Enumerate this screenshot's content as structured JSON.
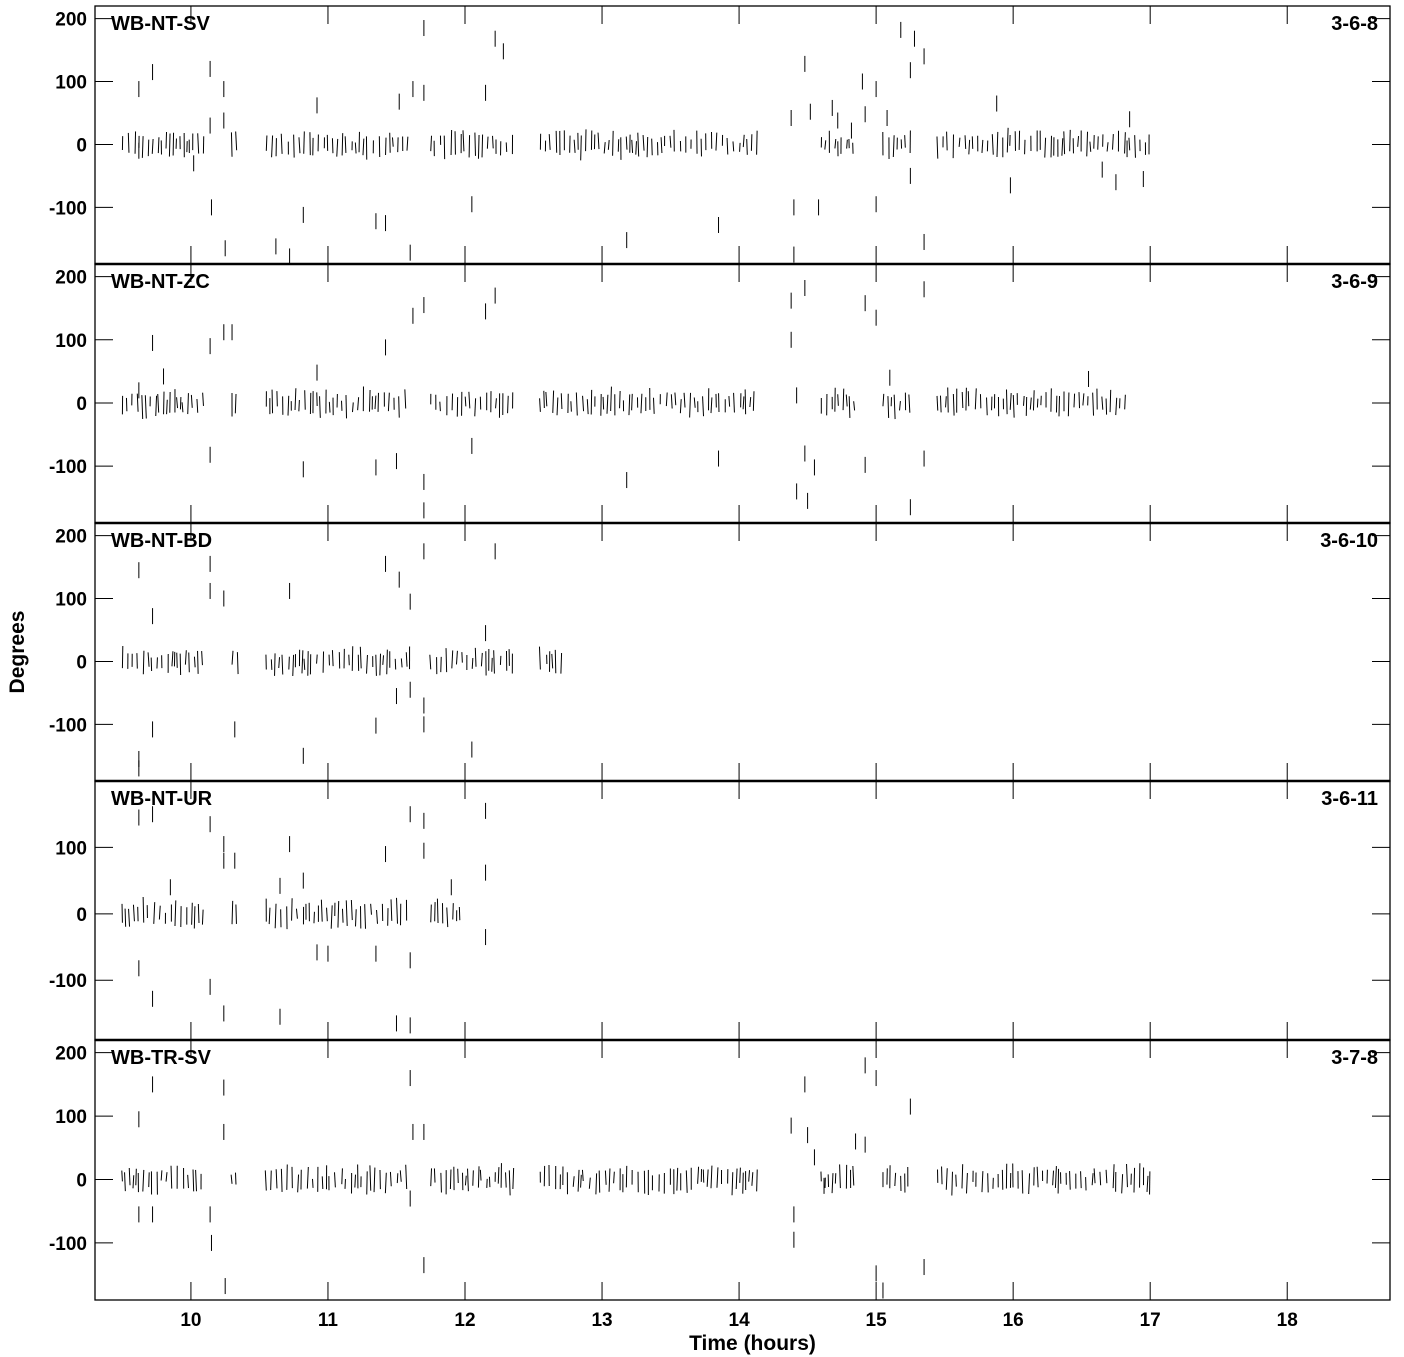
{
  "chart_data": {
    "type": "scatter",
    "xlabel": "Time (hours)",
    "ylabel": "Degrees",
    "xlim": [
      9.3,
      18.75
    ],
    "x_ticks": [
      "10",
      "11",
      "12",
      "13",
      "14",
      "15",
      "16",
      "17",
      "18"
    ],
    "panels": [
      {
        "baseline": "WB-NT-SV",
        "code": "3-6-8",
        "ylim": [
          -190,
          220
        ],
        "y_ticks": [
          "200",
          "100",
          "0",
          "-100"
        ],
        "bands": [
          [
            9.5,
            10.1
          ],
          [
            10.3,
            10.35
          ],
          [
            10.55,
            11.6
          ],
          [
            11.75,
            12.35
          ],
          [
            12.55,
            14.15
          ],
          [
            14.6,
            14.85
          ],
          [
            15.05,
            15.25
          ],
          [
            15.45,
            17.0
          ]
        ],
        "scatter": [
          [
            9.62,
            88
          ],
          [
            9.72,
            115
          ],
          [
            9.62,
            -10
          ],
          [
            10.02,
            -30
          ],
          [
            10.14,
            120
          ],
          [
            10.14,
            30
          ],
          [
            10.24,
            88
          ],
          [
            10.24,
            38
          ],
          [
            10.15,
            -100
          ],
          [
            10.25,
            -165
          ],
          [
            10.62,
            -162
          ],
          [
            10.72,
            -178
          ],
          [
            10.82,
            -112
          ],
          [
            10.92,
            62
          ],
          [
            11.35,
            -122
          ],
          [
            11.42,
            -125
          ],
          [
            11.52,
            68
          ],
          [
            11.6,
            -172
          ],
          [
            11.62,
            88
          ],
          [
            11.7,
            185
          ],
          [
            11.7,
            82
          ],
          [
            12.05,
            -95
          ],
          [
            12.15,
            82
          ],
          [
            12.22,
            168
          ],
          [
            12.28,
            148
          ],
          [
            13.18,
            -152
          ],
          [
            13.85,
            -128
          ],
          [
            14.38,
            42
          ],
          [
            14.4,
            -100
          ],
          [
            14.4,
            -175
          ],
          [
            14.48,
            128
          ],
          [
            14.52,
            52
          ],
          [
            14.58,
            -100
          ],
          [
            14.68,
            58
          ],
          [
            14.72,
            38
          ],
          [
            14.82,
            22
          ],
          [
            14.9,
            100
          ],
          [
            14.92,
            48
          ],
          [
            15.0,
            88
          ],
          [
            15.0,
            -95
          ],
          [
            15.08,
            42
          ],
          [
            15.18,
            182
          ],
          [
            15.25,
            118
          ],
          [
            15.28,
            168
          ],
          [
            15.35,
            140
          ],
          [
            15.25,
            -50
          ],
          [
            15.35,
            -155
          ],
          [
            15.88,
            65
          ],
          [
            16.65,
            -40
          ],
          [
            16.75,
            -60
          ],
          [
            16.85,
            40
          ],
          [
            16.95,
            -55
          ],
          [
            15.98,
            -65
          ]
        ]
      },
      {
        "baseline": "WB-NT-ZC",
        "code": "3-6-9",
        "ylim": [
          -190,
          220
        ],
        "y_ticks": [
          "200",
          "100",
          "0",
          "-100"
        ],
        "bands": [
          [
            9.5,
            10.1
          ],
          [
            10.3,
            10.35
          ],
          [
            10.55,
            11.6
          ],
          [
            11.75,
            12.35
          ],
          [
            12.55,
            14.15
          ],
          [
            14.6,
            14.85
          ],
          [
            15.05,
            15.25
          ],
          [
            15.45,
            16.85
          ]
        ],
        "scatter": [
          [
            9.62,
            20
          ],
          [
            9.72,
            95
          ],
          [
            9.8,
            42
          ],
          [
            10.14,
            90
          ],
          [
            10.14,
            -82
          ],
          [
            10.24,
            112
          ],
          [
            10.3,
            112
          ],
          [
            10.82,
            -105
          ],
          [
            10.92,
            48
          ],
          [
            11.42,
            88
          ],
          [
            11.35,
            -102
          ],
          [
            11.5,
            -92
          ],
          [
            11.62,
            138
          ],
          [
            11.7,
            155
          ],
          [
            11.7,
            -125
          ],
          [
            11.7,
            -170
          ],
          [
            12.05,
            -68
          ],
          [
            12.15,
            145
          ],
          [
            12.22,
            170
          ],
          [
            13.18,
            -122
          ],
          [
            13.85,
            -88
          ],
          [
            14.38,
            162
          ],
          [
            14.38,
            100
          ],
          [
            14.42,
            -140
          ],
          [
            14.48,
            182
          ],
          [
            14.48,
            -80
          ],
          [
            14.5,
            -155
          ],
          [
            14.55,
            -102
          ],
          [
            14.92,
            158
          ],
          [
            15.0,
            135
          ],
          [
            14.92,
            -98
          ],
          [
            15.1,
            40
          ],
          [
            15.25,
            -165
          ],
          [
            15.35,
            180
          ],
          [
            15.35,
            -88
          ],
          [
            14.42,
            12
          ],
          [
            16.55,
            38
          ]
        ]
      },
      {
        "baseline": "WB-NT-BD",
        "code": "3-6-10",
        "ylim": [
          -190,
          220
        ],
        "y_ticks": [
          "200",
          "100",
          "0",
          "-100"
        ],
        "bands": [
          [
            9.5,
            10.1
          ],
          [
            10.3,
            10.35
          ],
          [
            10.55,
            11.6
          ],
          [
            11.75,
            12.35
          ],
          [
            12.55,
            12.7
          ]
        ],
        "scatter": [
          [
            9.62,
            145
          ],
          [
            9.72,
            72
          ],
          [
            9.62,
            -155
          ],
          [
            9.62,
            -170
          ],
          [
            9.72,
            -108
          ],
          [
            10.14,
            155
          ],
          [
            10.14,
            112
          ],
          [
            10.24,
            100
          ],
          [
            10.32,
            -108
          ],
          [
            10.72,
            112
          ],
          [
            10.82,
            -150
          ],
          [
            11.42,
            155
          ],
          [
            11.35,
            -102
          ],
          [
            11.52,
            130
          ],
          [
            11.6,
            95
          ],
          [
            11.5,
            -55
          ],
          [
            11.6,
            -45
          ],
          [
            11.7,
            175
          ],
          [
            11.7,
            -70
          ],
          [
            11.7,
            -100
          ],
          [
            12.05,
            -140
          ],
          [
            12.15,
            45
          ],
          [
            12.22,
            175
          ]
        ]
      },
      {
        "baseline": "WB-NT-UR",
        "code": "3-6-11",
        "ylim": [
          -190,
          200
        ],
        "y_ticks": [
          "100",
          "0",
          "-100"
        ],
        "bands": [
          [
            9.5,
            10.1
          ],
          [
            10.3,
            10.35
          ],
          [
            10.55,
            11.6
          ],
          [
            11.75,
            11.98
          ]
        ],
        "scatter": [
          [
            9.62,
            145
          ],
          [
            9.72,
            150
          ],
          [
            9.62,
            -82
          ],
          [
            9.72,
            -128
          ],
          [
            9.85,
            40
          ],
          [
            10.14,
            135
          ],
          [
            10.14,
            -110
          ],
          [
            10.24,
            105
          ],
          [
            10.24,
            80
          ],
          [
            10.24,
            -150
          ],
          [
            10.32,
            80
          ],
          [
            10.65,
            42
          ],
          [
            10.72,
            105
          ],
          [
            10.82,
            50
          ],
          [
            10.65,
            -155
          ],
          [
            10.92,
            -58
          ],
          [
            11.0,
            -60
          ],
          [
            11.35,
            -60
          ],
          [
            11.42,
            90
          ],
          [
            11.5,
            -165
          ],
          [
            11.6,
            150
          ],
          [
            11.6,
            -70
          ],
          [
            11.6,
            -168
          ],
          [
            11.7,
            140
          ],
          [
            11.7,
            95
          ],
          [
            11.9,
            40
          ],
          [
            12.15,
            155
          ],
          [
            12.15,
            62
          ],
          [
            12.15,
            -35
          ]
        ]
      },
      {
        "baseline": "WB-TR-SV",
        "code": "3-7-8",
        "ylim": [
          -190,
          220
        ],
        "y_ticks": [
          "200",
          "100",
          "0",
          "-100"
        ],
        "bands": [
          [
            9.5,
            10.1
          ],
          [
            10.3,
            10.35
          ],
          [
            10.55,
            11.6
          ],
          [
            11.75,
            12.35
          ],
          [
            12.55,
            14.15
          ],
          [
            14.6,
            14.85
          ],
          [
            15.05,
            15.25
          ],
          [
            15.45,
            17.0
          ]
        ],
        "scatter": [
          [
            9.62,
            95
          ],
          [
            9.72,
            150
          ],
          [
            9.62,
            -55
          ],
          [
            9.72,
            -55
          ],
          [
            10.14,
            -55
          ],
          [
            10.15,
            -100
          ],
          [
            10.24,
            145
          ],
          [
            10.24,
            75
          ],
          [
            10.25,
            -168
          ],
          [
            11.6,
            160
          ],
          [
            11.62,
            75
          ],
          [
            11.7,
            75
          ],
          [
            11.6,
            -30
          ],
          [
            11.7,
            -135
          ],
          [
            14.38,
            85
          ],
          [
            14.4,
            -55
          ],
          [
            14.4,
            -95
          ],
          [
            14.48,
            150
          ],
          [
            14.5,
            70
          ],
          [
            14.55,
            35
          ],
          [
            14.85,
            60
          ],
          [
            14.92,
            55
          ],
          [
            14.92,
            180
          ],
          [
            15.0,
            160
          ],
          [
            15.0,
            -148
          ],
          [
            15.05,
            -175
          ],
          [
            15.25,
            115
          ],
          [
            15.35,
            -138
          ],
          [
            14.62,
            -10
          ]
        ]
      }
    ]
  }
}
